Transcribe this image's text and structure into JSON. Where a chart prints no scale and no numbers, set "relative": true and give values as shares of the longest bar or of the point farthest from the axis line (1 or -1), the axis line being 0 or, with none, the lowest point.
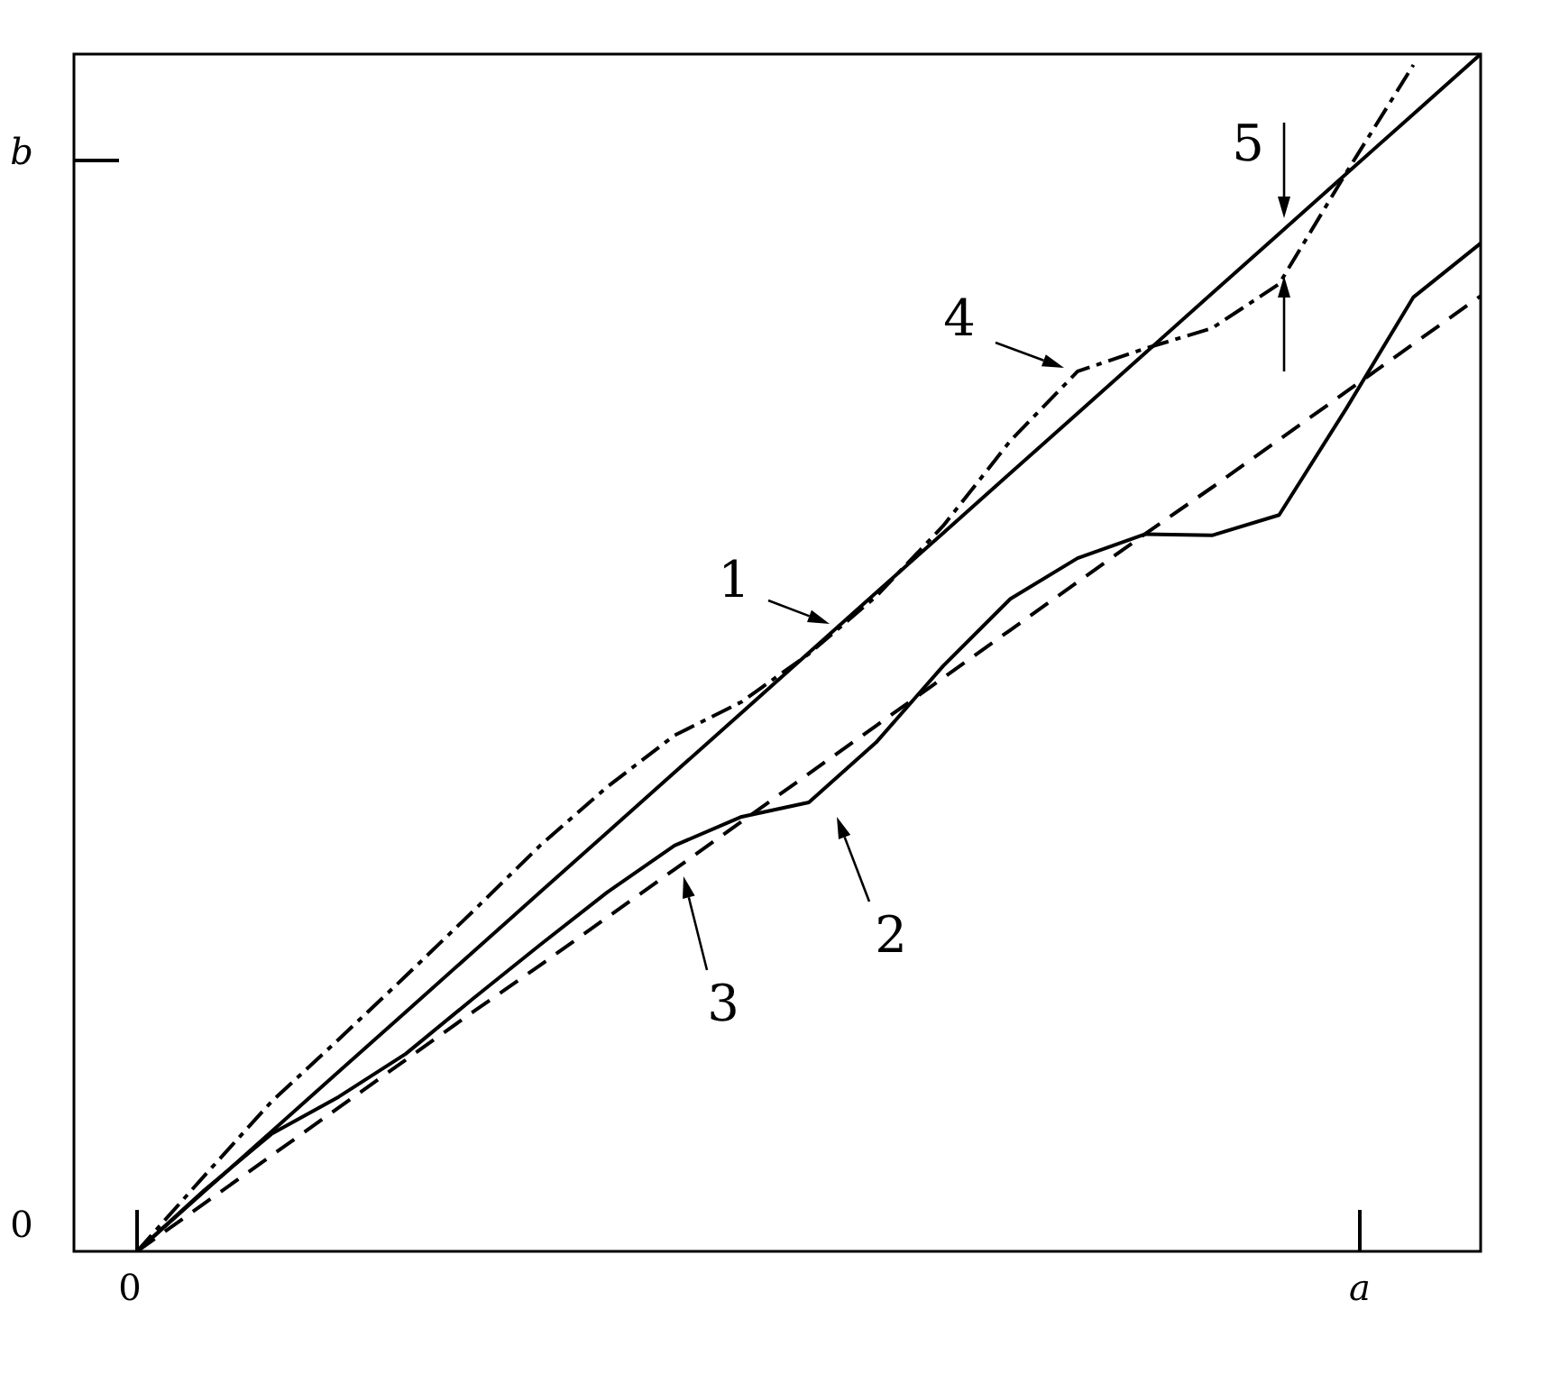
{
  "chart_data": {
    "type": "line",
    "relative": true,
    "marker": "none",
    "categories": [
      null,
      null,
      null,
      null,
      null,
      null,
      null,
      null,
      null,
      null,
      null,
      null,
      null,
      null,
      null,
      null,
      null,
      null,
      null,
      null,
      null
    ],
    "series": [
      {
        "color": "#000000",
        "line_style": "solid",
        "values": [
          0,
          0.05,
          0.1,
          0.15,
          0.2,
          0.25,
          0.3,
          0.35,
          0.4,
          0.45,
          0.5,
          0.55,
          0.6,
          0.65,
          0.7,
          0.75,
          0.8,
          0.85,
          0.9,
          0.95,
          1
        ]
      },
      {
        "color": "#000000",
        "line_style": "solid",
        "values": [
          0,
          0.051,
          0.098,
          0.129,
          0.165,
          0.211,
          0.256,
          0.3,
          0.339,
          0.363,
          0.375,
          0.425,
          0.489,
          0.545,
          0.579,
          0.599,
          0.598,
          0.615,
          0.704,
          0.797,
          0.842
        ]
      },
      {
        "color": "#000000",
        "line_style": "dashed",
        "values": [
          0,
          0.04,
          0.08,
          0.12,
          0.16,
          0.2,
          0.239,
          0.279,
          0.319,
          0.359,
          0.399,
          0.439,
          0.479,
          0.519,
          0.559,
          0.599,
          0.638,
          0.678,
          0.718,
          0.758,
          0.798
        ]
      },
      {
        "color": "#000000",
        "line_style": "dotted",
        "values": [
          0,
          0.063,
          0.125,
          0.177,
          0.23,
          0.284,
          0.339,
          0.388,
          0.431,
          0.459,
          0.499,
          0.547,
          0.606,
          0.677,
          0.735,
          0.754,
          0.771,
          0.808,
          0.901,
          0.991,
          null
        ]
      }
    ],
    "annotations": [
      "1",
      "2",
      "3",
      "4",
      "5",
      "0",
      "b",
      "0",
      "a"
    ]
  }
}
